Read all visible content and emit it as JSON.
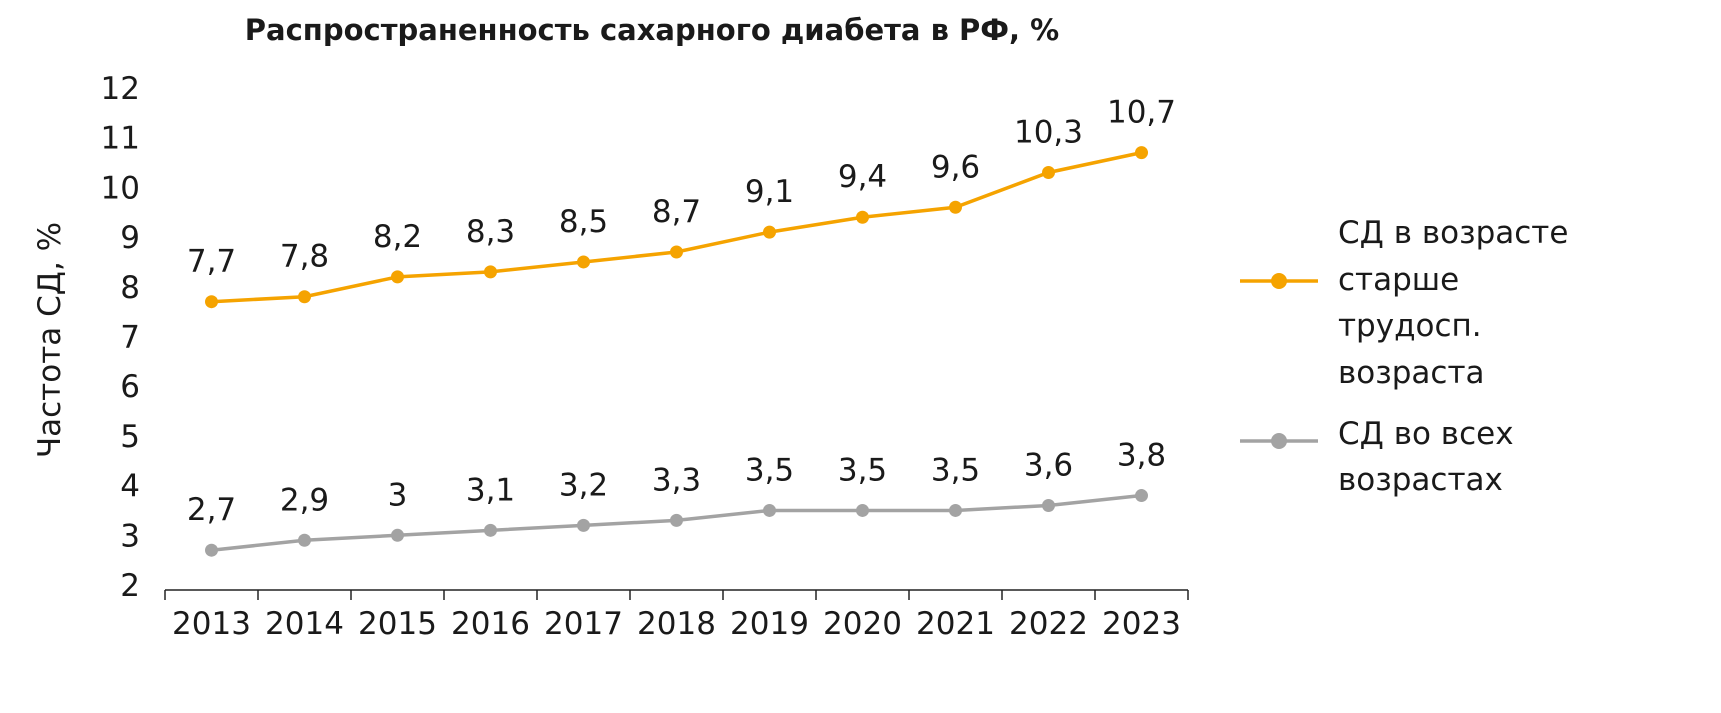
{
  "chart_data": {
    "type": "line",
    "title": "Распространенность сахарного диабета в РФ, %",
    "xlabel": "",
    "ylabel": "Частота СД, %",
    "ylim": [
      2,
      12
    ],
    "yticks": [
      "2",
      "3",
      "4",
      "5",
      "6",
      "7",
      "8",
      "9",
      "10",
      "11",
      "12"
    ],
    "categories": [
      "2013",
      "2014",
      "2015",
      "2016",
      "2017",
      "2018",
      "2019",
      "2020",
      "2021",
      "2022",
      "2023"
    ],
    "grid": false,
    "legend_position": "right",
    "series": [
      {
        "name": "СД в возрасте старше трудосп. возраста",
        "legend_lines": [
          "СД в возрасте",
          "старше",
          "трудосп.",
          "возраста"
        ],
        "color": "#F5A300",
        "values": [
          7.7,
          7.8,
          8.2,
          8.3,
          8.5,
          8.7,
          9.1,
          9.4,
          9.6,
          10.3,
          10.7
        ],
        "labels": [
          "7,7",
          "7,8",
          "8,2",
          "8,3",
          "8,5",
          "8,7",
          "9,1",
          "9,4",
          "9,6",
          "10,3",
          "10,7"
        ]
      },
      {
        "name": "СД во всех возрастах",
        "legend_lines": [
          "СД во всех",
          "возрастах"
        ],
        "color": "#A3A3A3",
        "values": [
          2.7,
          2.9,
          3.0,
          3.1,
          3.2,
          3.3,
          3.5,
          3.5,
          3.5,
          3.6,
          3.8
        ],
        "labels": [
          "2,7",
          "2,9",
          "3",
          "3,1",
          "3,2",
          "3,3",
          "3,5",
          "3,5",
          "3,5",
          "3,6",
          "3,8"
        ]
      }
    ]
  }
}
